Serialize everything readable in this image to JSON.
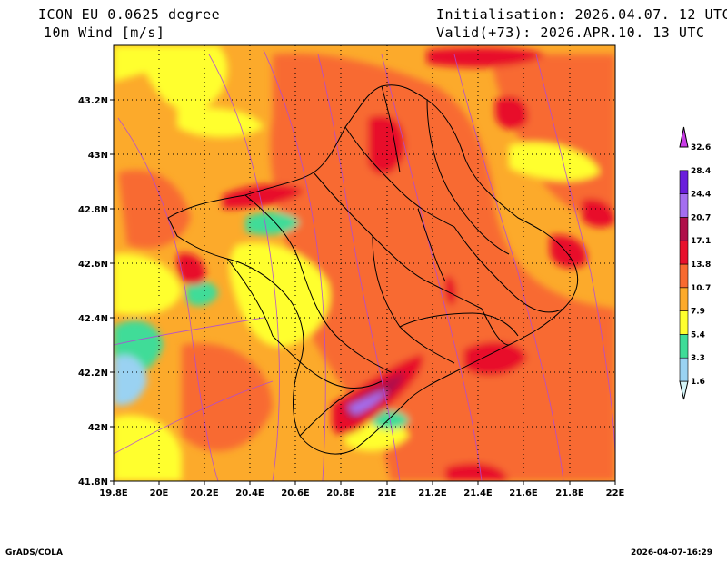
{
  "header": {
    "model": "ICON EU 0.0625 degree",
    "variable": "10m Wind [m/s]",
    "init": "Initialisation: 2026.04.07. 12 UTC",
    "valid": "Valid(+73): 2026.APR.10. 13 UTC"
  },
  "map": {
    "lon_labels": [
      "19.8E",
      "20E",
      "20.2E",
      "20.4E",
      "20.6E",
      "20.8E",
      "21E",
      "21.2E",
      "21.4E",
      "21.6E",
      "21.8E",
      "22E"
    ],
    "lat_labels": [
      "43.2N",
      "43N",
      "42.8N",
      "42.6N",
      "42.4N",
      "42.2N",
      "42N",
      "41.8N"
    ],
    "lon_range": [
      19.8,
      22.0
    ],
    "lat_range": [
      41.8,
      43.4
    ]
  },
  "colorbar": {
    "levels": [
      "1.6",
      "3.3",
      "5.4",
      "7.9",
      "10.7",
      "13.8",
      "17.1",
      "20.7",
      "24.4",
      "28.4",
      "32.6"
    ],
    "colors": [
      "#d4f4f7",
      "#9ad2f2",
      "#3fdc98",
      "#ffff2e",
      "#fcaa2b",
      "#f86a30",
      "#e8102c",
      "#b0104a",
      "#a46ef0",
      "#6a1edc",
      "#c83ce6"
    ]
  },
  "footer": {
    "left": "GrADS/COLA",
    "right": "2026-04-07-16:29"
  }
}
